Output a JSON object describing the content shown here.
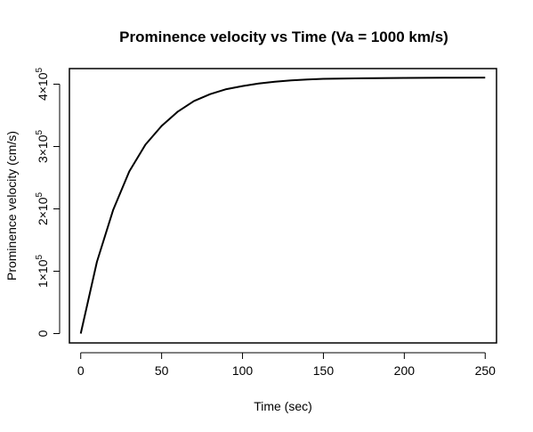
{
  "chart_data": {
    "type": "line",
    "title": "Prominence velocity vs Time (Va = 1000 km/s)",
    "xlabel": "Time (sec)",
    "ylabel": "Prominence velocity (cm/s)",
    "xlim": [
      -7,
      257
    ],
    "ylim": [
      -15000,
      425000
    ],
    "x_ticks": [
      {
        "value": 0,
        "label": "0"
      },
      {
        "value": 50,
        "label": "50"
      },
      {
        "value": 100,
        "label": "100"
      },
      {
        "value": 150,
        "label": "150"
      },
      {
        "value": 200,
        "label": "200"
      },
      {
        "value": 250,
        "label": "250"
      }
    ],
    "y_ticks": [
      {
        "value": 0,
        "mant": "0",
        "exp": ""
      },
      {
        "value": 100000,
        "mant": "1×10",
        "exp": "5"
      },
      {
        "value": 200000,
        "mant": "2×10",
        "exp": "5"
      },
      {
        "value": 300000,
        "mant": "3×10",
        "exp": "5"
      },
      {
        "value": 400000,
        "mant": "4×10",
        "exp": "5"
      }
    ],
    "grid": false,
    "line_color": "#000000",
    "series": [
      {
        "x": [
          0,
          10,
          20,
          30,
          40,
          50,
          60,
          70,
          80,
          90,
          100,
          110,
          120,
          130,
          140,
          150,
          175,
          200,
          225,
          250
        ],
        "y": [
          0,
          115000,
          198000,
          260000,
          303000,
          333000,
          356000,
          373000,
          384000,
          392000,
          397000,
          401000,
          404000,
          406000,
          407500,
          408500,
          409500,
          410000,
          410300,
          410500
        ]
      }
    ]
  }
}
